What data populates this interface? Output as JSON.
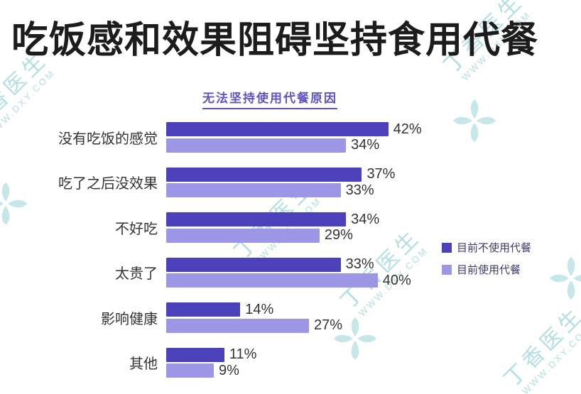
{
  "title": "吃饭感和效果阻碍坚持食用代餐",
  "watermark": {
    "brand": "丁香医生",
    "site": "WWW.DXY.COM"
  },
  "chart_data": {
    "type": "bar",
    "orientation": "horizontal",
    "title": "无法坚持使用代餐原因",
    "categories": [
      "没有吃饭的感觉",
      "吃了之后没效果",
      "不好吃",
      "太贵了",
      "影响健康",
      "其他"
    ],
    "series": [
      {
        "name": "目前不使用代餐",
        "color": "#4b42bb",
        "values": [
          42,
          37,
          34,
          33,
          14,
          11
        ]
      },
      {
        "name": "目前使用代餐",
        "color": "#9d96e6",
        "values": [
          34,
          33,
          29,
          40,
          27,
          9
        ]
      }
    ],
    "value_suffix": "%",
    "xlim": [
      0,
      45
    ],
    "grid": false,
    "legend_position": "right"
  }
}
